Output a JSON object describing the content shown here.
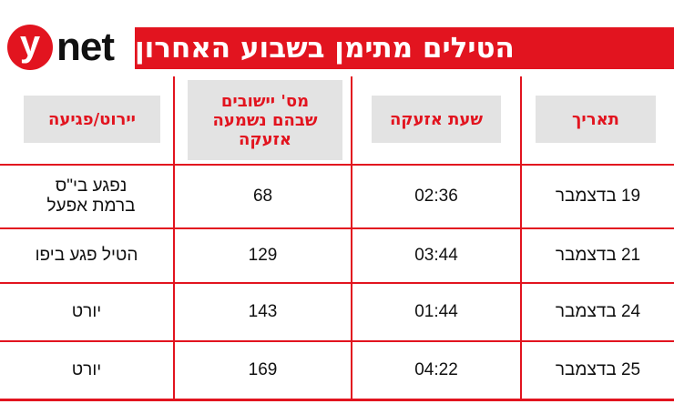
{
  "brand": {
    "logo_y": "y",
    "logo_text": "net"
  },
  "title": "הטילים מתימן בשבוע האחרון",
  "table": {
    "headers": [
      "תאריך",
      "שעת אזעקה",
      "מס' יישובים שבהם נשמעה אזעקה",
      "יירוט/פגיעה"
    ],
    "rows": [
      [
        "19 בדצמבר",
        "02:36",
        "68",
        "נפגע בי\"ס ברמת אפעל"
      ],
      [
        "21 בדצמבר",
        "03:44",
        "129",
        "הטיל פגע ביפו"
      ],
      [
        "24 בדצמבר",
        "01:44",
        "143",
        "יורט"
      ],
      [
        "25 בדצמבר",
        "04:22",
        "169",
        "יורט"
      ]
    ]
  },
  "colors": {
    "accent": "#e2141f",
    "header_chip_bg": "#e3e3e3"
  }
}
